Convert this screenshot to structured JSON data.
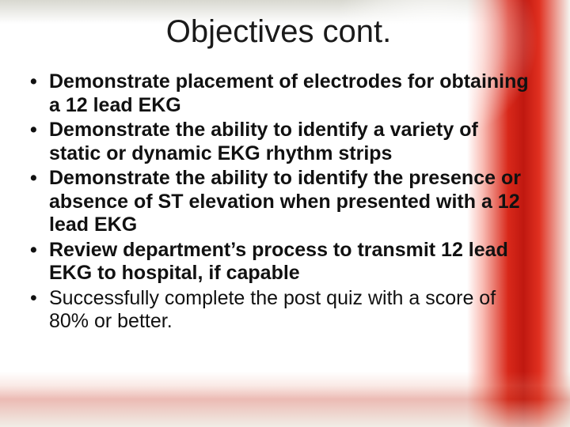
{
  "slide": {
    "title": "Objectives cont.",
    "title_fontsize": 40,
    "title_color": "#1a1a1a",
    "body_fontsize": 25,
    "body_color": "#111111",
    "bullets": [
      {
        "text": "Demonstrate placement of electrodes for obtaining a 12 lead EKG",
        "bold": true
      },
      {
        "text": "Demonstrate the ability to identify a variety of static or dynamic EKG rhythm strips",
        "bold": true
      },
      {
        "text": "Demonstrate the ability to identify the presence or absence of ST elevation when presented with a 12 lead EKG",
        "bold": true
      },
      {
        "text": "Review department’s process to transmit 12 lead EKG to hospital, if capable",
        "bold": true
      },
      {
        "text": "Successfully complete the post quiz with a score of 80% or better.",
        "bold": false
      }
    ],
    "background": {
      "base": "#ffffff",
      "red_accent": "#c01810",
      "red_highlight": "#e03020",
      "halo": "#ffffff"
    }
  }
}
